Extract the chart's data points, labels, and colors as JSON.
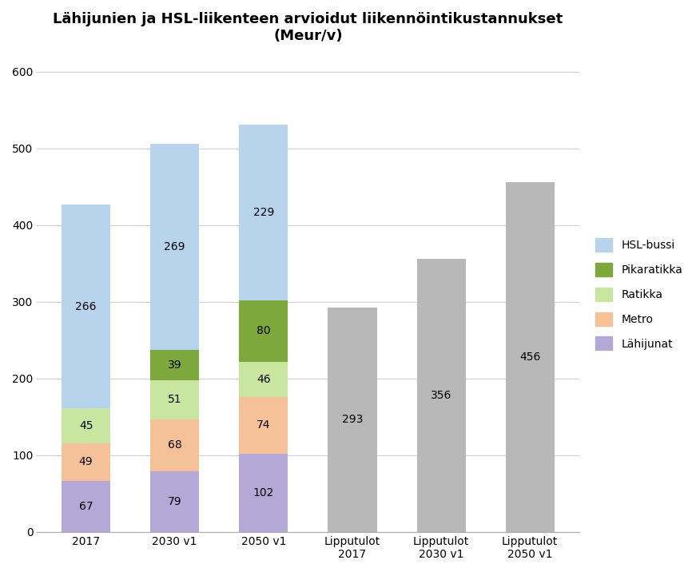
{
  "title": "Lähijunien ja HSL-liikenteen arvioidut liikennöintikustannukset\n(Meur/v)",
  "categories": [
    "2017",
    "2030 v1",
    "2050 v1",
    "Lipputulot\n2017",
    "Lipputulot\n2030 v1",
    "Lipputulot\n2050 v1"
  ],
  "stacked_cols": [
    0,
    1,
    2
  ],
  "gray_cols": [
    3,
    4,
    5
  ],
  "stacked_data": {
    "Lähijunat": [
      67,
      79,
      102
    ],
    "Metro": [
      49,
      68,
      74
    ],
    "Ratikka": [
      45,
      51,
      46
    ],
    "Pikaratikka": [
      0,
      39,
      80
    ],
    "HSL-bussi": [
      266,
      269,
      229
    ]
  },
  "gray_vals": [
    293,
    356,
    456
  ],
  "colors": {
    "Lähijunat": "#b3a8d6",
    "Metro": "#f5c199",
    "Ratikka": "#c8e6a0",
    "Pikaratikka": "#7da83c",
    "HSL-bussi": "#b8d4ed"
  },
  "gray_color": "#b8b8b8",
  "ylim": [
    0,
    620
  ],
  "yticks": [
    0,
    100,
    200,
    300,
    400,
    500,
    600
  ],
  "legend_order": [
    "HSL-bussi",
    "Pikaratikka",
    "Ratikka",
    "Metro",
    "Lähijunat"
  ],
  "bar_width": 0.55,
  "label_fontsize": 10,
  "title_fontsize": 13,
  "legend_fontsize": 10,
  "tick_fontsize": 10,
  "figsize": [
    8.76,
    7.16
  ],
  "dpi": 100,
  "bg_color": "#ffffff"
}
